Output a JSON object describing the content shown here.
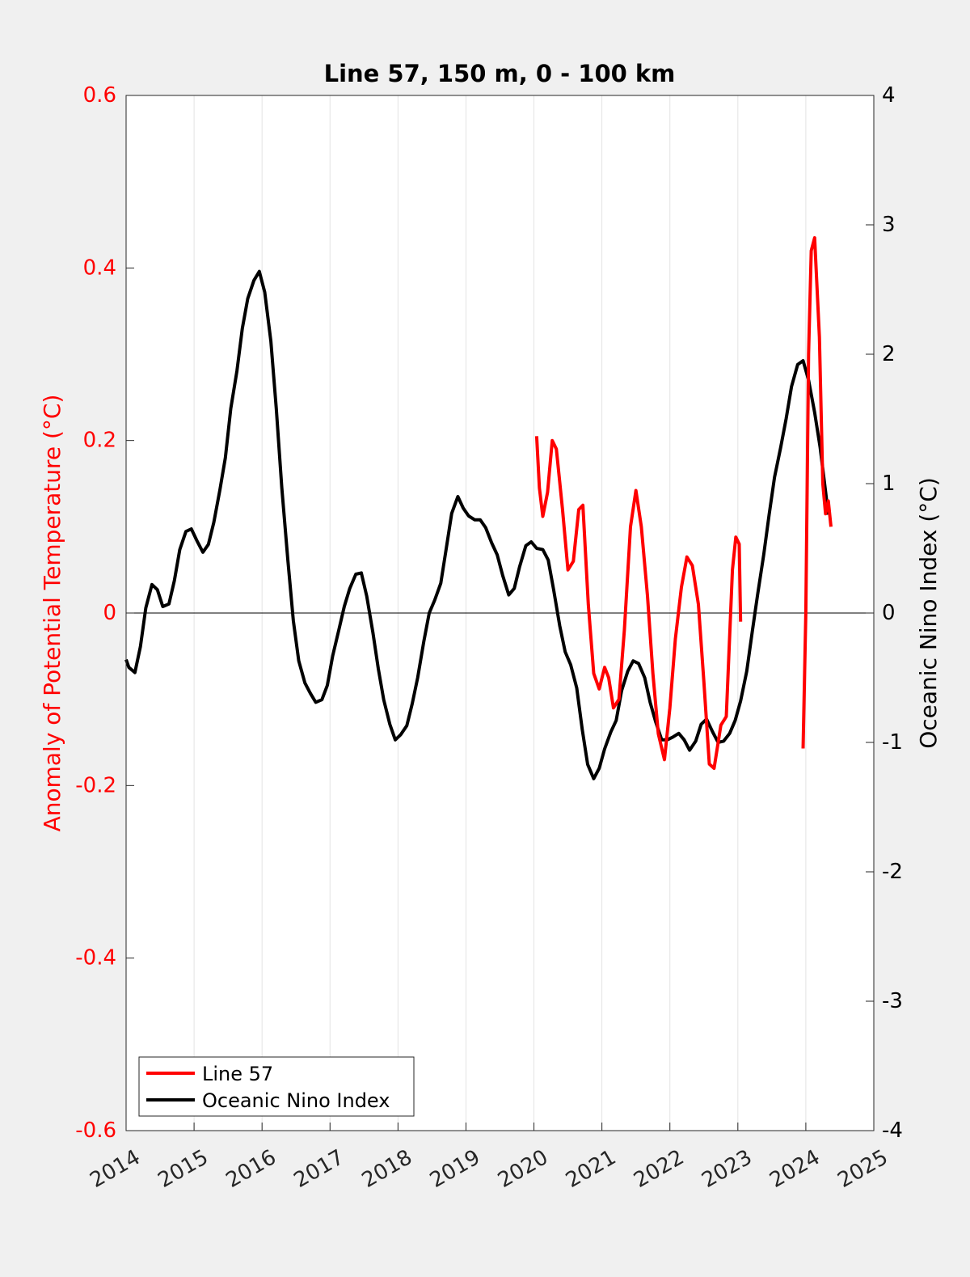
{
  "chart_data": {
    "type": "line",
    "title": "Line 57, 150 m, 0 - 100 km",
    "xlabel": "",
    "ylabel_left": "Anomaly of Potential Temperature (°C)",
    "ylabel_right": "Oceanic Nino Index (°C)",
    "xlim": [
      2014,
      2025
    ],
    "ylim_left": [
      -0.6,
      0.6
    ],
    "ylim_right": [
      -4,
      4
    ],
    "x_ticks": [
      "2014",
      "2015",
      "2016",
      "2017",
      "2018",
      "2019",
      "2020",
      "2021",
      "2022",
      "2023",
      "2024",
      "2025"
    ],
    "y_left_ticks": [
      "-0.6",
      "-0.4",
      "-0.2",
      "0",
      "0.2",
      "0.4",
      "0.6"
    ],
    "y_right_ticks": [
      "-4",
      "-3",
      "-2",
      "-1",
      "0",
      "1",
      "2",
      "3",
      "4"
    ],
    "grid": "vertical",
    "zero_line": true,
    "legend_position": "bottom-left",
    "colors": {
      "line57": "#ff0000",
      "oni": "#000000",
      "left_axis": "#ff0000",
      "right_axis": "#000000"
    },
    "series": [
      {
        "name": "Line 57",
        "axis": "left",
        "segments": [
          [
            [
              2020.04,
              0.205
            ],
            [
              2020.08,
              0.145
            ],
            [
              2020.13,
              0.112
            ],
            [
              2020.2,
              0.14
            ],
            [
              2020.27,
              0.2
            ],
            [
              2020.33,
              0.19
            ],
            [
              2020.42,
              0.12
            ],
            [
              2020.5,
              0.05
            ],
            [
              2020.58,
              0.06
            ],
            [
              2020.66,
              0.12
            ],
            [
              2020.72,
              0.125
            ],
            [
              2020.8,
              0.01
            ],
            [
              2020.88,
              -0.07
            ],
            [
              2020.96,
              -0.088
            ],
            [
              2021.04,
              -0.063
            ],
            [
              2021.1,
              -0.075
            ],
            [
              2021.17,
              -0.11
            ],
            [
              2021.25,
              -0.1
            ],
            [
              2021.33,
              -0.02
            ],
            [
              2021.42,
              0.1
            ],
            [
              2021.5,
              0.142
            ],
            [
              2021.58,
              0.1
            ],
            [
              2021.67,
              0.02
            ],
            [
              2021.75,
              -0.07
            ],
            [
              2021.83,
              -0.14
            ],
            [
              2021.92,
              -0.17
            ],
            [
              2022.0,
              -0.11
            ],
            [
              2022.08,
              -0.03
            ],
            [
              2022.17,
              0.03
            ],
            [
              2022.25,
              0.065
            ],
            [
              2022.33,
              0.055
            ],
            [
              2022.42,
              0.01
            ],
            [
              2022.5,
              -0.08
            ],
            [
              2022.58,
              -0.175
            ],
            [
              2022.65,
              -0.18
            ],
            [
              2022.75,
              -0.13
            ],
            [
              2022.83,
              -0.12
            ],
            [
              2022.92,
              0.05
            ],
            [
              2022.97,
              0.088
            ],
            [
              2023.02,
              0.08
            ],
            [
              2023.04,
              -0.01
            ]
          ],
          [
            [
              2023.96,
              -0.157
            ],
            [
              2024.0,
              0.0
            ],
            [
              2024.04,
              0.3
            ],
            [
              2024.08,
              0.42
            ],
            [
              2024.13,
              0.435
            ],
            [
              2024.2,
              0.32
            ],
            [
              2024.25,
              0.15
            ],
            [
              2024.29,
              0.115
            ],
            [
              2024.33,
              0.13
            ],
            [
              2024.37,
              0.1
            ]
          ]
        ]
      },
      {
        "name": "Oceanic Nino Index",
        "axis": "right",
        "segments": [
          [
            [
              2014.0,
              -0.36
            ],
            [
              2014.04,
              -0.42
            ],
            [
              2014.13,
              -0.46
            ],
            [
              2014.21,
              -0.26
            ],
            [
              2014.29,
              0.04
            ],
            [
              2014.38,
              0.22
            ],
            [
              2014.46,
              0.18
            ],
            [
              2014.54,
              0.05
            ],
            [
              2014.63,
              0.07
            ],
            [
              2014.71,
              0.25
            ],
            [
              2014.79,
              0.49
            ],
            [
              2014.88,
              0.63
            ],
            [
              2014.96,
              0.65
            ],
            [
              2015.04,
              0.56
            ],
            [
              2015.13,
              0.47
            ],
            [
              2015.21,
              0.53
            ],
            [
              2015.29,
              0.7
            ],
            [
              2015.38,
              0.95
            ],
            [
              2015.46,
              1.2
            ],
            [
              2015.54,
              1.58
            ],
            [
              2015.63,
              1.87
            ],
            [
              2015.71,
              2.2
            ],
            [
              2015.79,
              2.43
            ],
            [
              2015.88,
              2.57
            ],
            [
              2015.96,
              2.64
            ],
            [
              2016.04,
              2.48
            ],
            [
              2016.13,
              2.1
            ],
            [
              2016.21,
              1.58
            ],
            [
              2016.29,
              0.97
            ],
            [
              2016.38,
              0.41
            ],
            [
              2016.46,
              -0.06
            ],
            [
              2016.54,
              -0.37
            ],
            [
              2016.63,
              -0.54
            ],
            [
              2016.71,
              -0.62
            ],
            [
              2016.79,
              -0.69
            ],
            [
              2016.88,
              -0.67
            ],
            [
              2016.96,
              -0.56
            ],
            [
              2017.04,
              -0.33
            ],
            [
              2017.13,
              -0.13
            ],
            [
              2017.21,
              0.05
            ],
            [
              2017.29,
              0.19
            ],
            [
              2017.38,
              0.3
            ],
            [
              2017.46,
              0.31
            ],
            [
              2017.54,
              0.13
            ],
            [
              2017.63,
              -0.15
            ],
            [
              2017.71,
              -0.43
            ],
            [
              2017.79,
              -0.67
            ],
            [
              2017.88,
              -0.86
            ],
            [
              2017.96,
              -0.98
            ],
            [
              2018.04,
              -0.94
            ],
            [
              2018.13,
              -0.87
            ],
            [
              2018.21,
              -0.7
            ],
            [
              2018.29,
              -0.5
            ],
            [
              2018.38,
              -0.22
            ],
            [
              2018.46,
              0.0
            ],
            [
              2018.54,
              0.1
            ],
            [
              2018.63,
              0.23
            ],
            [
              2018.71,
              0.5
            ],
            [
              2018.79,
              0.77
            ],
            [
              2018.88,
              0.9
            ],
            [
              2018.96,
              0.81
            ],
            [
              2019.04,
              0.75
            ],
            [
              2019.13,
              0.72
            ],
            [
              2019.21,
              0.72
            ],
            [
              2019.29,
              0.66
            ],
            [
              2019.38,
              0.54
            ],
            [
              2019.46,
              0.45
            ],
            [
              2019.54,
              0.29
            ],
            [
              2019.63,
              0.14
            ],
            [
              2019.71,
              0.19
            ],
            [
              2019.79,
              0.36
            ],
            [
              2019.88,
              0.52
            ],
            [
              2019.96,
              0.55
            ],
            [
              2020.04,
              0.5
            ],
            [
              2020.13,
              0.49
            ],
            [
              2020.21,
              0.41
            ],
            [
              2020.29,
              0.18
            ],
            [
              2020.38,
              -0.1
            ],
            [
              2020.46,
              -0.3
            ],
            [
              2020.54,
              -0.4
            ],
            [
              2020.63,
              -0.58
            ],
            [
              2020.71,
              -0.9
            ],
            [
              2020.79,
              -1.17
            ],
            [
              2020.88,
              -1.28
            ],
            [
              2020.96,
              -1.2
            ],
            [
              2021.04,
              -1.05
            ],
            [
              2021.13,
              -0.92
            ],
            [
              2021.21,
              -0.83
            ],
            [
              2021.29,
              -0.6
            ],
            [
              2021.38,
              -0.45
            ],
            [
              2021.46,
              -0.37
            ],
            [
              2021.54,
              -0.39
            ],
            [
              2021.63,
              -0.5
            ],
            [
              2021.71,
              -0.69
            ],
            [
              2021.79,
              -0.84
            ],
            [
              2021.88,
              -0.98
            ],
            [
              2021.96,
              -0.98
            ],
            [
              2022.04,
              -0.96
            ],
            [
              2022.13,
              -0.93
            ],
            [
              2022.21,
              -0.98
            ],
            [
              2022.29,
              -1.06
            ],
            [
              2022.38,
              -0.99
            ],
            [
              2022.46,
              -0.86
            ],
            [
              2022.54,
              -0.82
            ],
            [
              2022.63,
              -0.92
            ],
            [
              2022.71,
              -1.0
            ],
            [
              2022.79,
              -0.99
            ],
            [
              2022.88,
              -0.93
            ],
            [
              2022.96,
              -0.83
            ],
            [
              2023.04,
              -0.68
            ],
            [
              2023.13,
              -0.45
            ],
            [
              2023.21,
              -0.15
            ],
            [
              2023.29,
              0.14
            ],
            [
              2023.38,
              0.45
            ],
            [
              2023.46,
              0.76
            ],
            [
              2023.54,
              1.05
            ],
            [
              2023.63,
              1.28
            ],
            [
              2023.71,
              1.5
            ],
            [
              2023.79,
              1.75
            ],
            [
              2023.88,
              1.92
            ],
            [
              2023.96,
              1.95
            ],
            [
              2024.04,
              1.8
            ],
            [
              2024.13,
              1.55
            ],
            [
              2024.21,
              1.28
            ],
            [
              2024.29,
              0.94
            ],
            [
              2024.33,
              0.76
            ]
          ]
        ]
      }
    ]
  }
}
